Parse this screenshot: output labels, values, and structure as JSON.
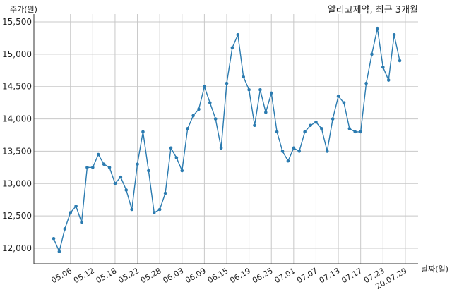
{
  "chart_data": {
    "type": "line",
    "title": "알리코제약, 최근 3개월",
    "xlabel": "날짜(일)",
    "ylabel": "주가(원)",
    "ylim": [
      11750,
      15550
    ],
    "yticks": [
      12000,
      12500,
      13000,
      13500,
      14000,
      14500,
      15000,
      15500
    ],
    "ytick_labels": [
      "12,000",
      "12,500",
      "13,000",
      "13,500",
      "14,000",
      "14,500",
      "15,000",
      "15,500"
    ],
    "xtick_labels": [
      "05.06",
      "05.12",
      "05.18",
      "05.22",
      "05.28",
      "06.03",
      "06.09",
      "06.15",
      "06.19",
      "06.25",
      "07.01",
      "07.07",
      "07.13",
      "07.17",
      "07.23",
      "20.07.29"
    ],
    "xtick_indices": [
      3,
      7,
      11,
      15,
      19,
      23,
      27,
      31,
      35,
      39,
      43,
      47,
      51,
      55,
      59,
      63
    ],
    "grid": true,
    "series": [
      {
        "values": [
          12150,
          11950,
          12300,
          12550,
          12650,
          12400,
          13250,
          13250,
          13450,
          13300,
          13250,
          13000,
          13100,
          12900,
          12600,
          13300,
          13800,
          13200,
          12550,
          12600,
          12850,
          13550,
          13400,
          13200,
          13850,
          14050,
          14150,
          14500,
          14250,
          14000,
          13550,
          14550,
          15100,
          15300,
          14650,
          14450,
          13900,
          14450,
          14100,
          14400,
          13800,
          13500,
          13350,
          13550,
          13500,
          13800,
          13900,
          13950,
          13850,
          13500,
          14000,
          14350,
          14250,
          13850,
          13800,
          13800,
          14550,
          15000,
          15400,
          14800,
          14600,
          15300,
          14900
        ]
      }
    ]
  }
}
